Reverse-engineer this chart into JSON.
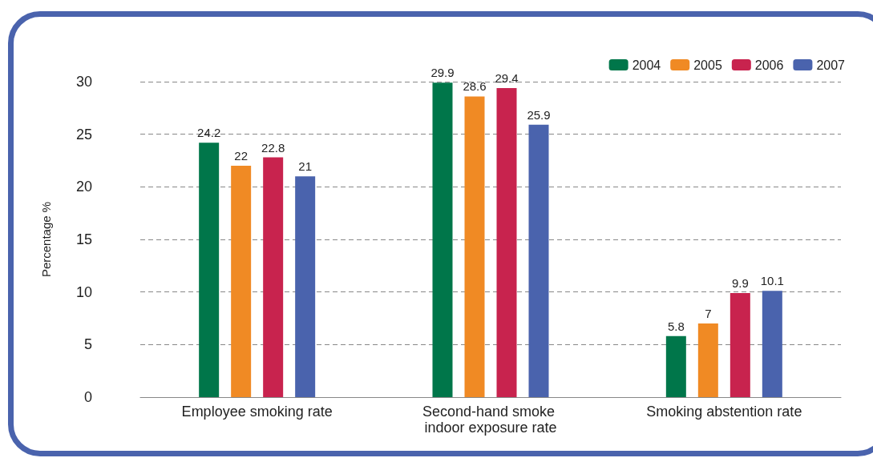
{
  "chart_data": {
    "type": "bar",
    "ylabel": "Percentage %",
    "categories": [
      "Employee smoking rate",
      "Second-hand smoke indoor exposure rate",
      "Smoking abstention rate"
    ],
    "series": [
      {
        "name": "2004",
        "color": "#00764a",
        "values": [
          24.2,
          29.9,
          5.8
        ]
      },
      {
        "name": "2005",
        "color": "#f08a24",
        "values": [
          22,
          28.6,
          7
        ]
      },
      {
        "name": "2006",
        "color": "#c8234e",
        "values": [
          22.8,
          29.4,
          9.9
        ]
      },
      {
        "name": "2007",
        "color": "#4a63ad",
        "values": [
          21,
          25.9,
          10.1
        ]
      }
    ],
    "ylim": [
      0,
      30
    ],
    "yticks": [
      0,
      5,
      10,
      15,
      20,
      25,
      30
    ],
    "grid": "y",
    "legend": "top right",
    "data_labels": true
  }
}
